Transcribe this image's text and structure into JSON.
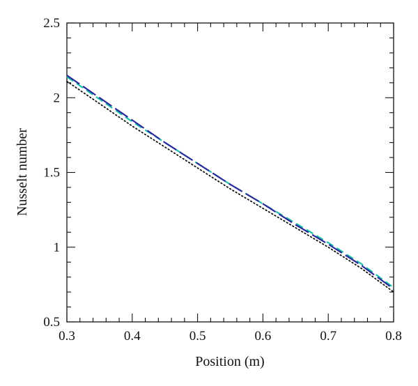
{
  "chart_data": {
    "type": "line",
    "title": "",
    "xlabel": "Position (m)",
    "ylabel": "Nusselt number",
    "xlim": [
      0.3,
      0.8
    ],
    "ylim": [
      0.5,
      2.5
    ],
    "x_ticks": [
      "0.3",
      "0.4",
      "0.5",
      "0.6",
      "0.7",
      "0.8"
    ],
    "y_ticks": [
      "0.5",
      "1",
      "1.5",
      "2",
      "2.5"
    ],
    "grid": false,
    "legend": "none",
    "series": [
      {
        "color": "#111111",
        "style": "dotted",
        "x": [
          0.3,
          0.35,
          0.4,
          0.45,
          0.5,
          0.55,
          0.6,
          0.65,
          0.7,
          0.75,
          0.8
        ],
        "y": [
          2.11,
          1.96,
          1.81,
          1.67,
          1.53,
          1.39,
          1.26,
          1.13,
          1.0,
          0.86,
          0.7
        ]
      },
      {
        "color": "#20c0a8",
        "style": "dashed",
        "x": [
          0.3,
          0.35,
          0.4,
          0.45,
          0.5,
          0.55,
          0.6,
          0.65,
          0.7,
          0.75,
          0.8
        ],
        "y": [
          2.14,
          1.99,
          1.84,
          1.7,
          1.56,
          1.42,
          1.29,
          1.16,
          1.03,
          0.89,
          0.73
        ]
      },
      {
        "color": "#2a2a9a",
        "style": "long-dash",
        "x": [
          0.3,
          0.35,
          0.4,
          0.45,
          0.5,
          0.55,
          0.6,
          0.65,
          0.7,
          0.75,
          0.8
        ],
        "y": [
          2.15,
          2.0,
          1.85,
          1.7,
          1.56,
          1.42,
          1.29,
          1.15,
          1.02,
          0.88,
          0.72
        ]
      }
    ]
  }
}
